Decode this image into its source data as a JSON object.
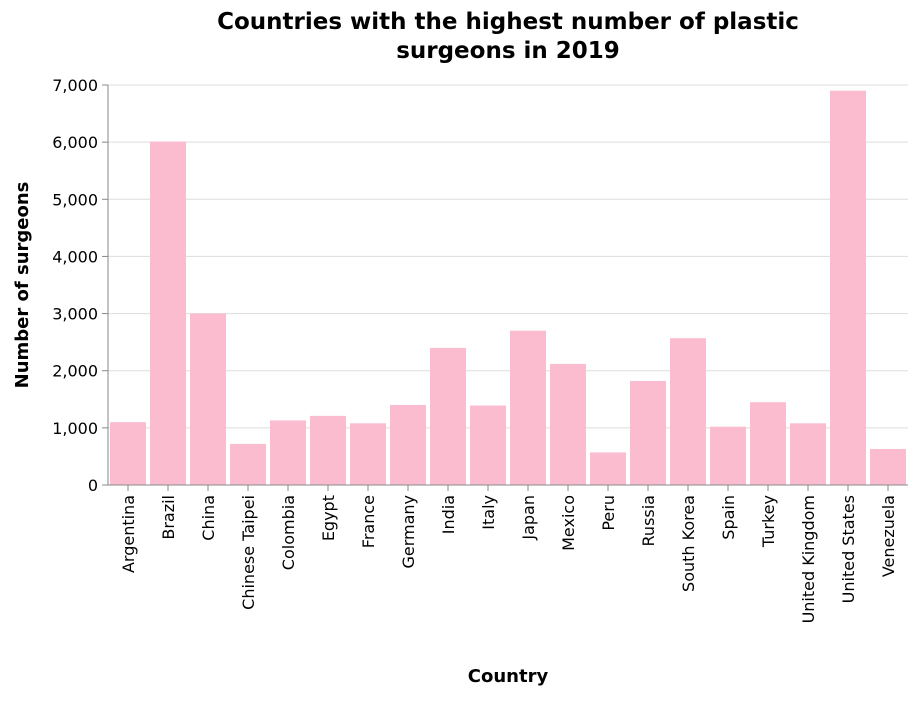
{
  "chart_data": {
    "type": "bar",
    "title": "Countries with the highest number of plastic surgeons in 2019",
    "title_lines": [
      "Countries with the highest number of plastic",
      "surgeons in 2019"
    ],
    "xlabel": "Country",
    "ylabel": "Number of surgeons",
    "ylim": [
      0,
      7000
    ],
    "yticks": [
      0,
      1000,
      2000,
      3000,
      4000,
      5000,
      6000,
      7000
    ],
    "ytick_labels": [
      "0",
      "1,000",
      "2,000",
      "3,000",
      "4,000",
      "5,000",
      "6,000",
      "7,000"
    ],
    "grid": true,
    "bar_color": "#fbbccf",
    "categories": [
      "Argentina",
      "Brazil",
      "China",
      "Chinese Taipei",
      "Colombia",
      "Egypt",
      "France",
      "Germany",
      "India",
      "Italy",
      "Japan",
      "Mexico",
      "Peru",
      "Russia",
      "South Korea",
      "Spain",
      "Turkey",
      "United Kingdom",
      "United States",
      "Venezuela"
    ],
    "values": [
      1100,
      6010,
      3000,
      720,
      1130,
      1210,
      1080,
      1400,
      2400,
      1390,
      2700,
      2120,
      570,
      1820,
      2570,
      1020,
      1450,
      1080,
      6900,
      630
    ]
  }
}
